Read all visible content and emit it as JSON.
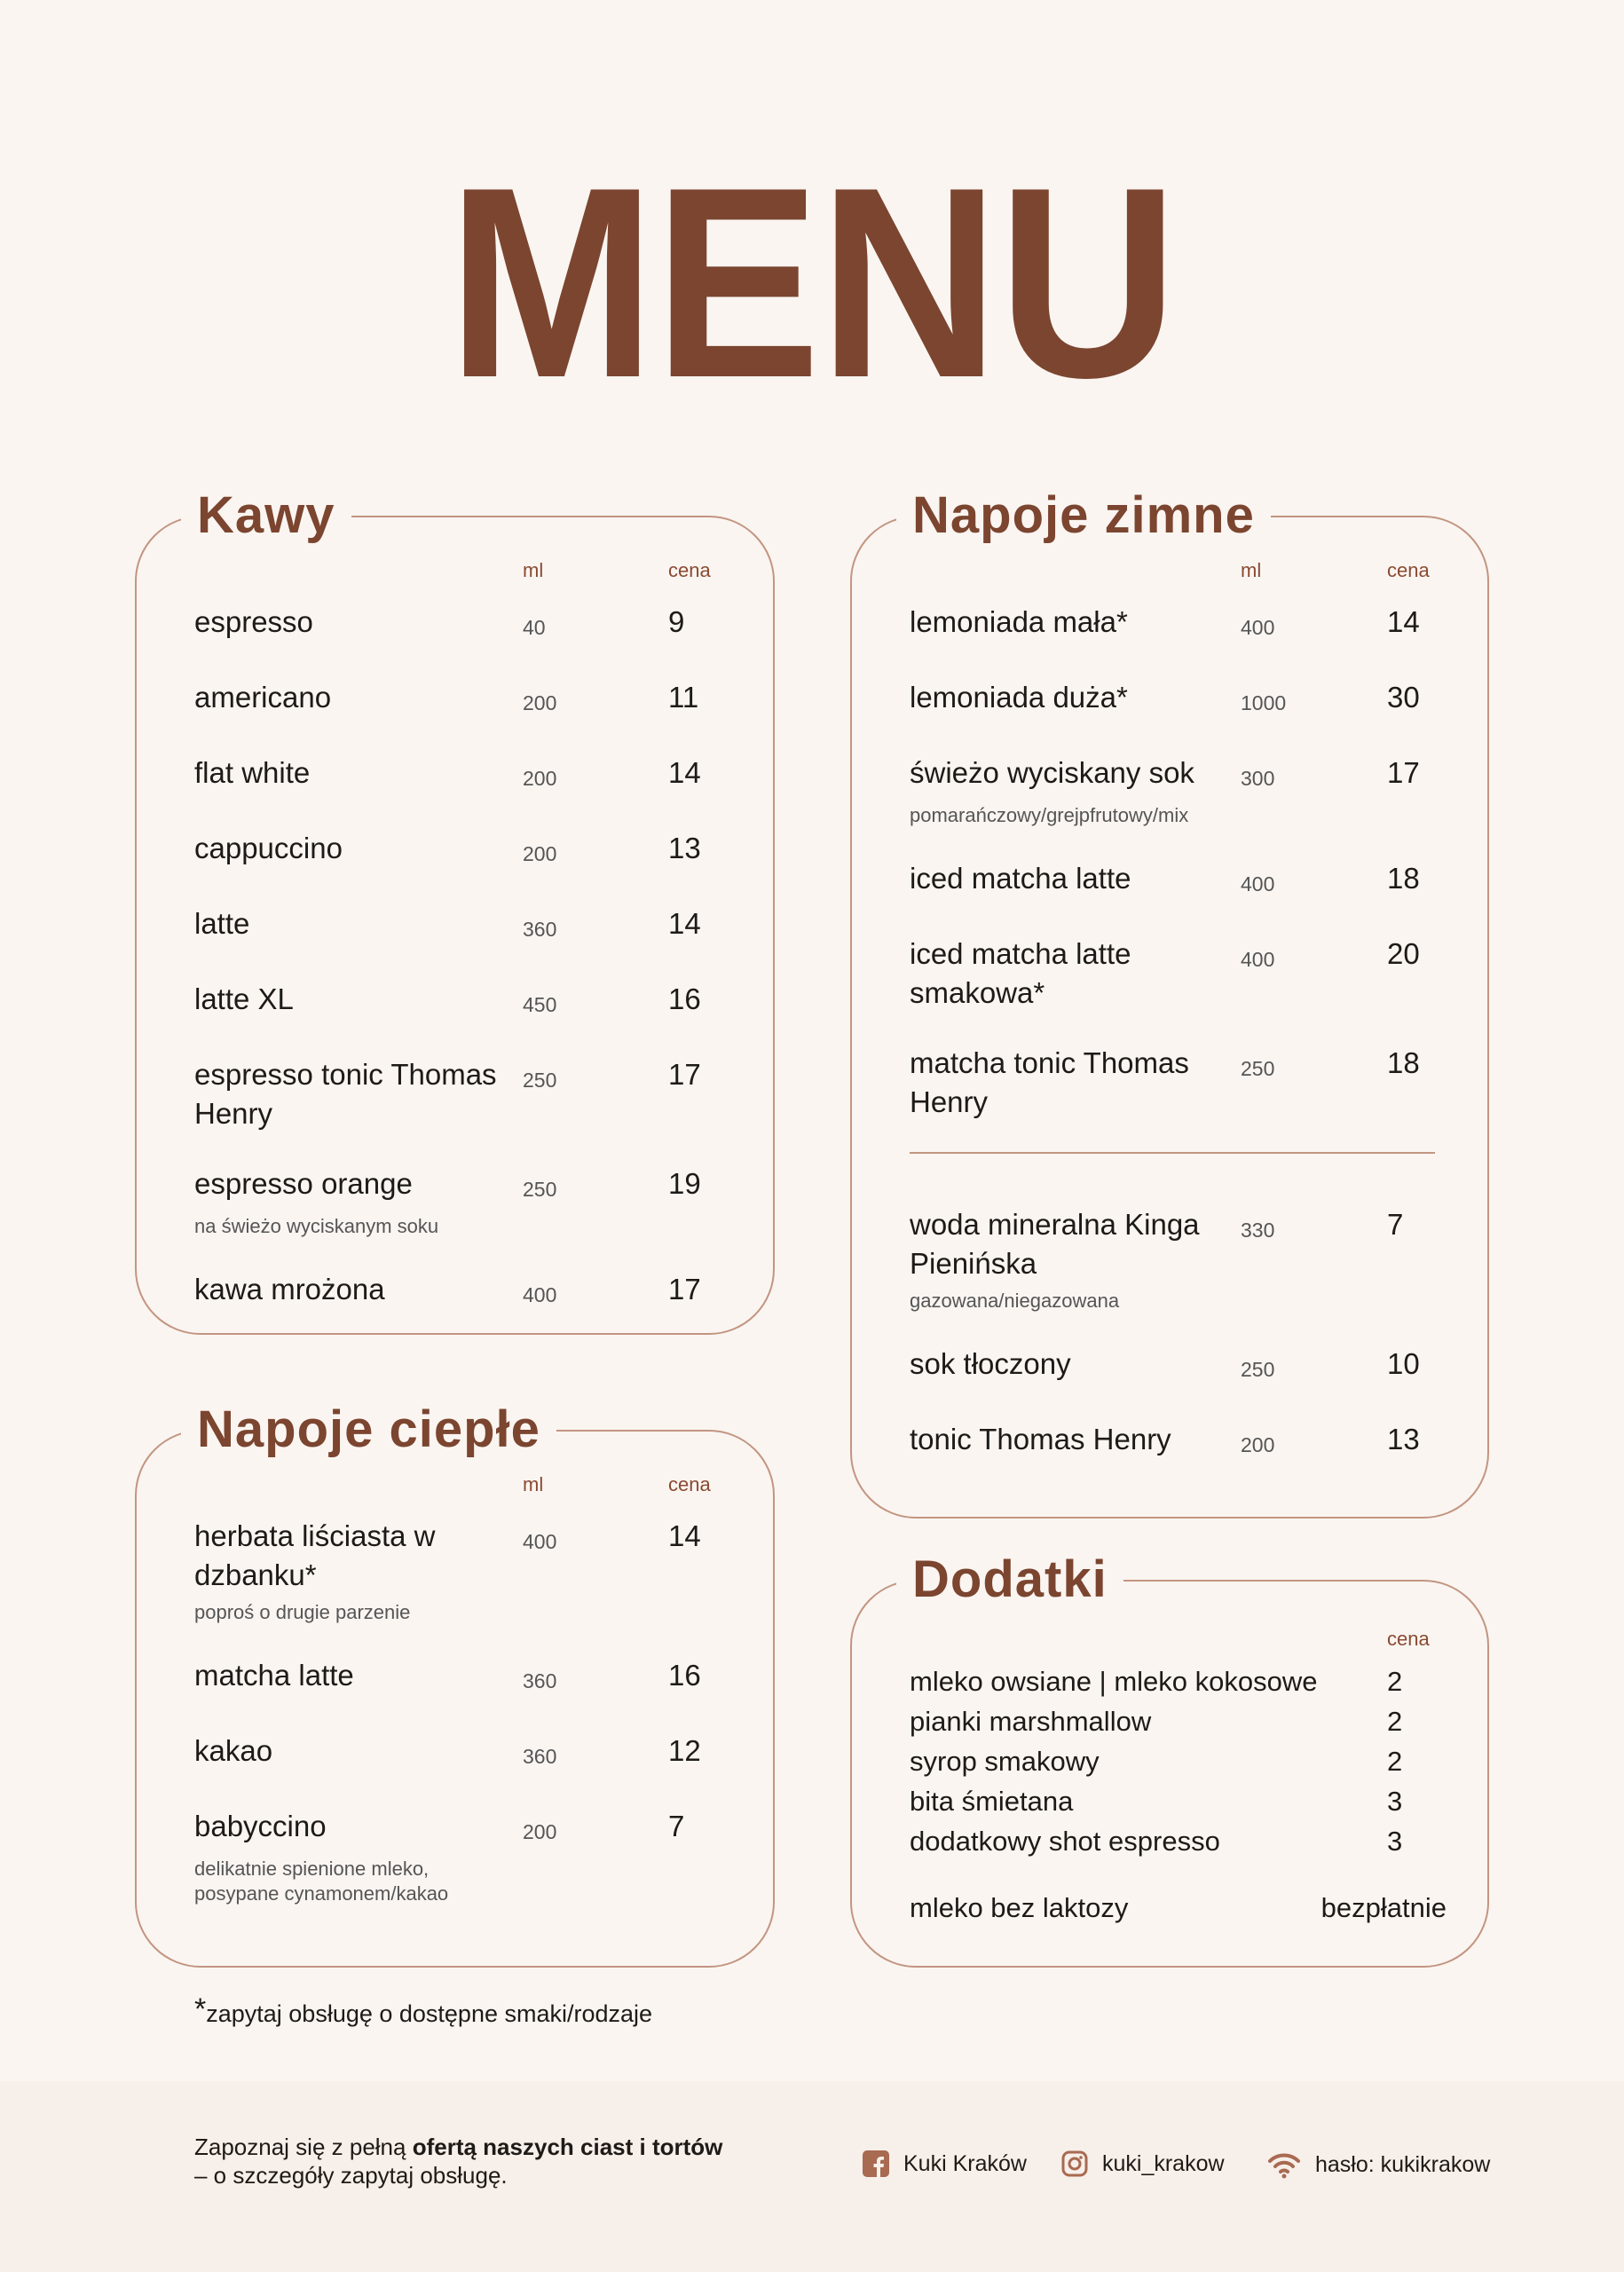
{
  "title": "MENU",
  "colors": {
    "brand": "#7b4530",
    "border": "#c39581",
    "background": "#faf5f1",
    "footer_bg": "#f7efe9"
  },
  "kawy": {
    "title": "Kawy",
    "col_ml": "ml",
    "col_price": "cena",
    "items": [
      {
        "name": "espresso",
        "ml": "40",
        "price": "9"
      },
      {
        "name": "americano",
        "ml": "200",
        "price": "11"
      },
      {
        "name": "flat white",
        "ml": "200",
        "price": "14"
      },
      {
        "name": "cappuccino",
        "ml": "200",
        "price": "13"
      },
      {
        "name": "latte",
        "ml": "360",
        "price": "14"
      },
      {
        "name": "latte XL",
        "ml": "450",
        "price": "16"
      },
      {
        "name": "espresso tonic Thomas Henry",
        "ml": "250",
        "price": "17"
      },
      {
        "name": "espresso orange",
        "ml": "250",
        "price": "19",
        "note": "na świeżo wyciskanym soku"
      },
      {
        "name": "kawa mrożona",
        "ml": "400",
        "price": "17"
      }
    ]
  },
  "cieple": {
    "title": "Napoje ciepłe",
    "col_ml": "ml",
    "col_price": "cena",
    "items": [
      {
        "name": "herbata liściasta w dzbanku*",
        "ml": "400",
        "price": "14",
        "note": "poproś o drugie parzenie"
      },
      {
        "name": "matcha latte",
        "ml": "360",
        "price": "16"
      },
      {
        "name": "kakao",
        "ml": "360",
        "price": "12"
      },
      {
        "name": "babyccino",
        "ml": "200",
        "price": "7",
        "note": "delikatnie spienione mleko, posypane cynamonem/kakao"
      }
    ]
  },
  "zimne": {
    "title": "Napoje zimne",
    "col_ml": "ml",
    "col_price": "cena",
    "items": [
      {
        "name": "lemoniada mała*",
        "ml": "400",
        "price": "14"
      },
      {
        "name": "lemoniada duża*",
        "ml": "1000",
        "price": "30"
      },
      {
        "name": "świeżo wyciskany sok",
        "ml": "300",
        "price": "17",
        "note": "pomarańczowy/grejpfrutowy/mix"
      },
      {
        "name": "iced matcha latte",
        "ml": "400",
        "price": "18"
      },
      {
        "name": "iced matcha latte smakowa*",
        "ml": "400",
        "price": "20"
      },
      {
        "name": "matcha tonic Thomas Henry",
        "ml": "250",
        "price": "18"
      }
    ],
    "items2": [
      {
        "name": "woda mineralna Kinga Pienińska",
        "ml": "330",
        "price": "7",
        "note": "gazowana/niegazowana"
      },
      {
        "name": "sok tłoczony",
        "ml": "250",
        "price": "10"
      },
      {
        "name": "tonic Thomas Henry",
        "ml": "200",
        "price": "13"
      }
    ]
  },
  "dodatki": {
    "title": "Dodatki",
    "col_price": "cena",
    "items": [
      {
        "name": "mleko owsiane | mleko kokosowe",
        "price": "2"
      },
      {
        "name": "pianki marshmallow",
        "price": "2"
      },
      {
        "name": "syrop smakowy",
        "price": "2"
      },
      {
        "name": "bita śmietana",
        "price": "3"
      },
      {
        "name": "dodatkowy shot espresso",
        "price": "3"
      }
    ],
    "free_name": "mleko bez laktozy",
    "free_price": "bezpłatnie"
  },
  "footnote": {
    "asterisk": "*",
    "text": "zapytaj obsługę o dostępne smaki/rodzaje"
  },
  "footer": {
    "text_1": "Zapoznaj się z pełną ",
    "text_bold": "ofertą naszych ciast i tortów",
    "text_2": "– o szczegóły zapytaj obsługę.",
    "facebook": "Kuki Kraków",
    "instagram": "kuki_krakow",
    "wifi": "hasło: kukikrakow",
    "icons": [
      "facebook-icon",
      "instagram-icon",
      "wifi-icon"
    ]
  }
}
